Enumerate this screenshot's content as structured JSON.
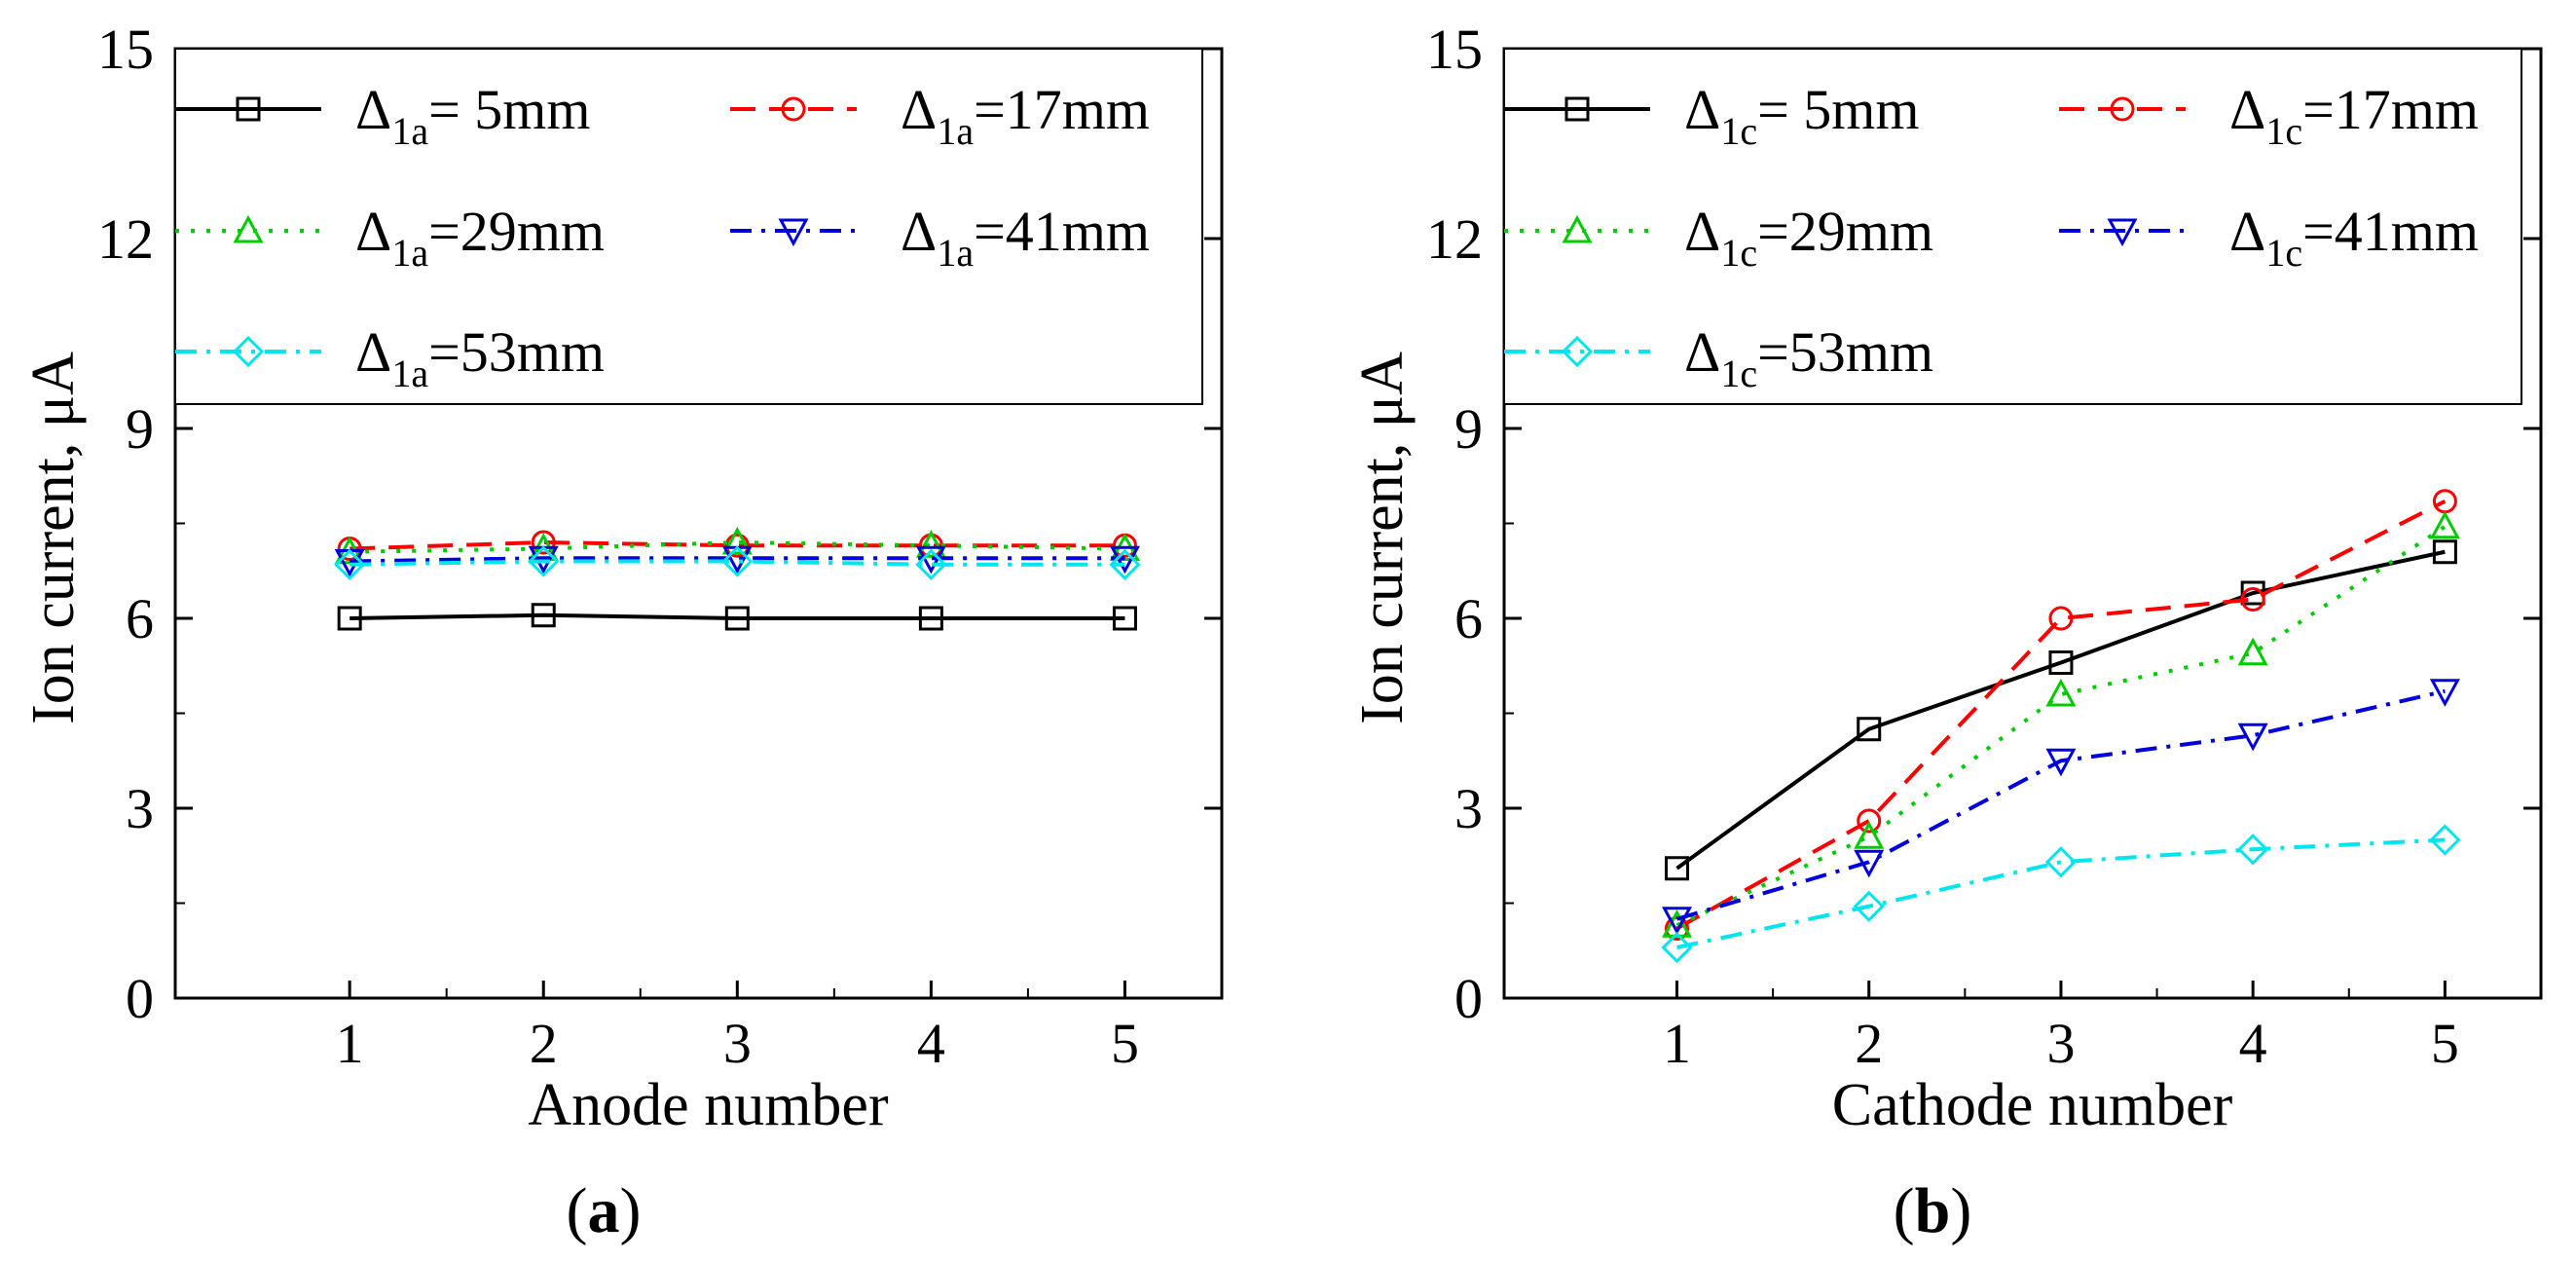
{
  "figure": {
    "panels": [
      "a",
      "b"
    ]
  },
  "chart_data": [
    {
      "type": "line",
      "caption_letter": "a",
      "title": "",
      "xlabel": "Anode number",
      "ylabel": "Ion current, μA",
      "xlim": [
        0.1,
        5.5
      ],
      "ylim": [
        0,
        15
      ],
      "x_ticks": [
        1,
        2,
        3,
        4,
        5
      ],
      "y_ticks": [
        0,
        3,
        6,
        9,
        12,
        15
      ],
      "x": [
        1,
        2,
        3,
        4,
        5
      ],
      "series": [
        {
          "name": "Δ",
          "sub": "1a",
          "value_text": "= 5mm",
          "color": "#000000",
          "dash": "",
          "marker": "square",
          "values": [
            6.0,
            6.05,
            6.0,
            6.0,
            6.0
          ]
        },
        {
          "name": "Δ",
          "sub": "1a",
          "value_text": "=17mm",
          "color": "#ff0000",
          "dash": "26,14",
          "marker": "circle",
          "values": [
            7.1,
            7.2,
            7.15,
            7.15,
            7.15
          ]
        },
        {
          "name": "Δ",
          "sub": "1a",
          "value_text": "=29mm",
          "color": "#00cc00",
          "dash": "4,12",
          "marker": "triangle-up",
          "values": [
            7.05,
            7.1,
            7.2,
            7.15,
            7.1
          ]
        },
        {
          "name": "Δ",
          "sub": "1a",
          "value_text": "=41mm",
          "color": "#0000dd",
          "dash": "22,10,4,10",
          "marker": "triangle-down",
          "values": [
            6.9,
            6.95,
            6.95,
            6.95,
            6.95
          ]
        },
        {
          "name": "Δ",
          "sub": "1a",
          "value_text": "=53mm",
          "color": "#00e5ee",
          "dash": "22,10,4,10",
          "marker": "diamond",
          "values": [
            6.85,
            6.9,
            6.9,
            6.85,
            6.85
          ]
        }
      ]
    },
    {
      "type": "line",
      "caption_letter": "b",
      "title": "",
      "xlabel": "Cathode number",
      "ylabel": "Ion current, μA",
      "xlim": [
        0.1,
        5.5
      ],
      "ylim": [
        0,
        15
      ],
      "x_ticks": [
        1,
        2,
        3,
        4,
        5
      ],
      "y_ticks": [
        0,
        3,
        6,
        9,
        12,
        15
      ],
      "x": [
        1,
        2,
        3,
        4,
        5
      ],
      "series": [
        {
          "name": "Δ",
          "sub": "1c",
          "value_text": "= 5mm",
          "color": "#000000",
          "dash": "",
          "marker": "square",
          "values": [
            2.05,
            4.25,
            5.3,
            6.4,
            7.05
          ]
        },
        {
          "name": "Δ",
          "sub": "1c",
          "value_text": "=17mm",
          "color": "#ff0000",
          "dash": "26,14",
          "marker": "circle",
          "values": [
            1.1,
            2.8,
            6.0,
            6.3,
            7.85
          ]
        },
        {
          "name": "Δ",
          "sub": "1c",
          "value_text": "=29mm",
          "color": "#00cc00",
          "dash": "4,12",
          "marker": "triangle-up",
          "values": [
            1.15,
            2.55,
            4.8,
            5.45,
            7.45
          ]
        },
        {
          "name": "Δ",
          "sub": "1c",
          "value_text": "=41mm",
          "color": "#0000dd",
          "dash": "22,10,4,10",
          "marker": "triangle-down",
          "values": [
            1.25,
            2.15,
            3.75,
            4.15,
            4.85
          ]
        },
        {
          "name": "Δ",
          "sub": "1c",
          "value_text": "=53mm",
          "color": "#00e5ee",
          "dash": "22,10,4,10",
          "marker": "diamond",
          "values": [
            0.8,
            1.45,
            2.15,
            2.35,
            2.5
          ]
        }
      ]
    }
  ]
}
